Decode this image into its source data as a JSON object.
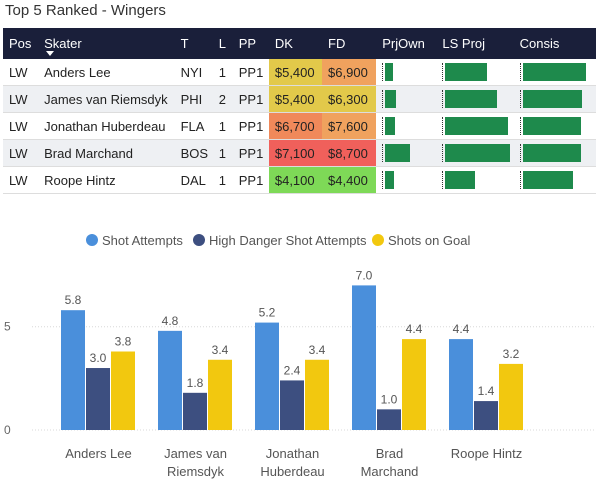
{
  "title": "Top 5 Ranked - Wingers",
  "table": {
    "columns": [
      "Pos",
      "Skater",
      "T",
      "L",
      "PP",
      "DK",
      "FD",
      "PrjOwn",
      "LS Proj",
      "Consis"
    ],
    "rows": [
      {
        "pos": "LW",
        "skater": "Anders Lee",
        "team": "NYI",
        "line": "1",
        "pp": "PP1",
        "dk": "$5,400",
        "fd": "$6,900",
        "prjown": 0.15,
        "lsproj": 0.65,
        "consis": 0.92
      },
      {
        "pos": "LW",
        "skater": "James van Riemsdyk",
        "team": "PHI",
        "line": "2",
        "pp": "PP1",
        "dk": "$5,400",
        "fd": "$6,300",
        "prjown": 0.22,
        "lsproj": 0.8,
        "consis": 0.86
      },
      {
        "pos": "LW",
        "skater": "Jonathan Huberdeau",
        "team": "FLA",
        "line": "1",
        "pp": "PP1",
        "dk": "$6,700",
        "fd": "$7,600",
        "prjown": 0.19,
        "lsproj": 0.97,
        "consis": 0.84
      },
      {
        "pos": "LW",
        "skater": "Brad Marchand",
        "team": "BOS",
        "line": "1",
        "pp": "PP1",
        "dk": "$7,100",
        "fd": "$8,700",
        "prjown": 0.5,
        "lsproj": 1.0,
        "consis": 0.84
      },
      {
        "pos": "LW",
        "skater": "Roope Hintz",
        "team": "DAL",
        "line": "1",
        "pp": "PP1",
        "dk": "$4,100",
        "fd": "$4,400",
        "prjown": 0.18,
        "lsproj": 0.46,
        "consis": 0.72
      }
    ],
    "dk_colors": [
      "#e2c94a",
      "#e2c94a",
      "#f0895a",
      "#f0605b",
      "#7ed957"
    ],
    "fd_colors": [
      "#f0a25e",
      "#e2c94a",
      "#f0a25e",
      "#f0605b",
      "#7ed957"
    ],
    "bar_color": "#1e8a4c"
  },
  "chart_data": {
    "type": "bar",
    "categories": [
      "Anders Lee",
      "James van Riemsdyk",
      "Jonathan Huberdeau",
      "Brad Marchand",
      "Roope Hintz"
    ],
    "category_lines": [
      [
        "Anders Lee"
      ],
      [
        "James van",
        "Riemsdyk"
      ],
      [
        "Jonathan",
        "Huberdeau"
      ],
      [
        "Brad",
        "Marchand"
      ],
      [
        "Roope Hintz"
      ]
    ],
    "series": [
      {
        "name": "Shot Attempts",
        "values": [
          5.8,
          4.8,
          5.2,
          7.0,
          4.4
        ],
        "color": "#4a8fdb"
      },
      {
        "name": "High Danger Shot Attempts",
        "values": [
          3.0,
          1.8,
          2.4,
          1.0,
          1.4
        ],
        "color": "#3d4f80"
      },
      {
        "name": "Shots on Goal",
        "values": [
          3.8,
          3.4,
          3.4,
          4.4,
          3.2
        ],
        "color": "#f2c80f"
      }
    ],
    "ylim": [
      0,
      7.6
    ],
    "yticks": [
      0,
      5
    ],
    "legend": "top"
  }
}
